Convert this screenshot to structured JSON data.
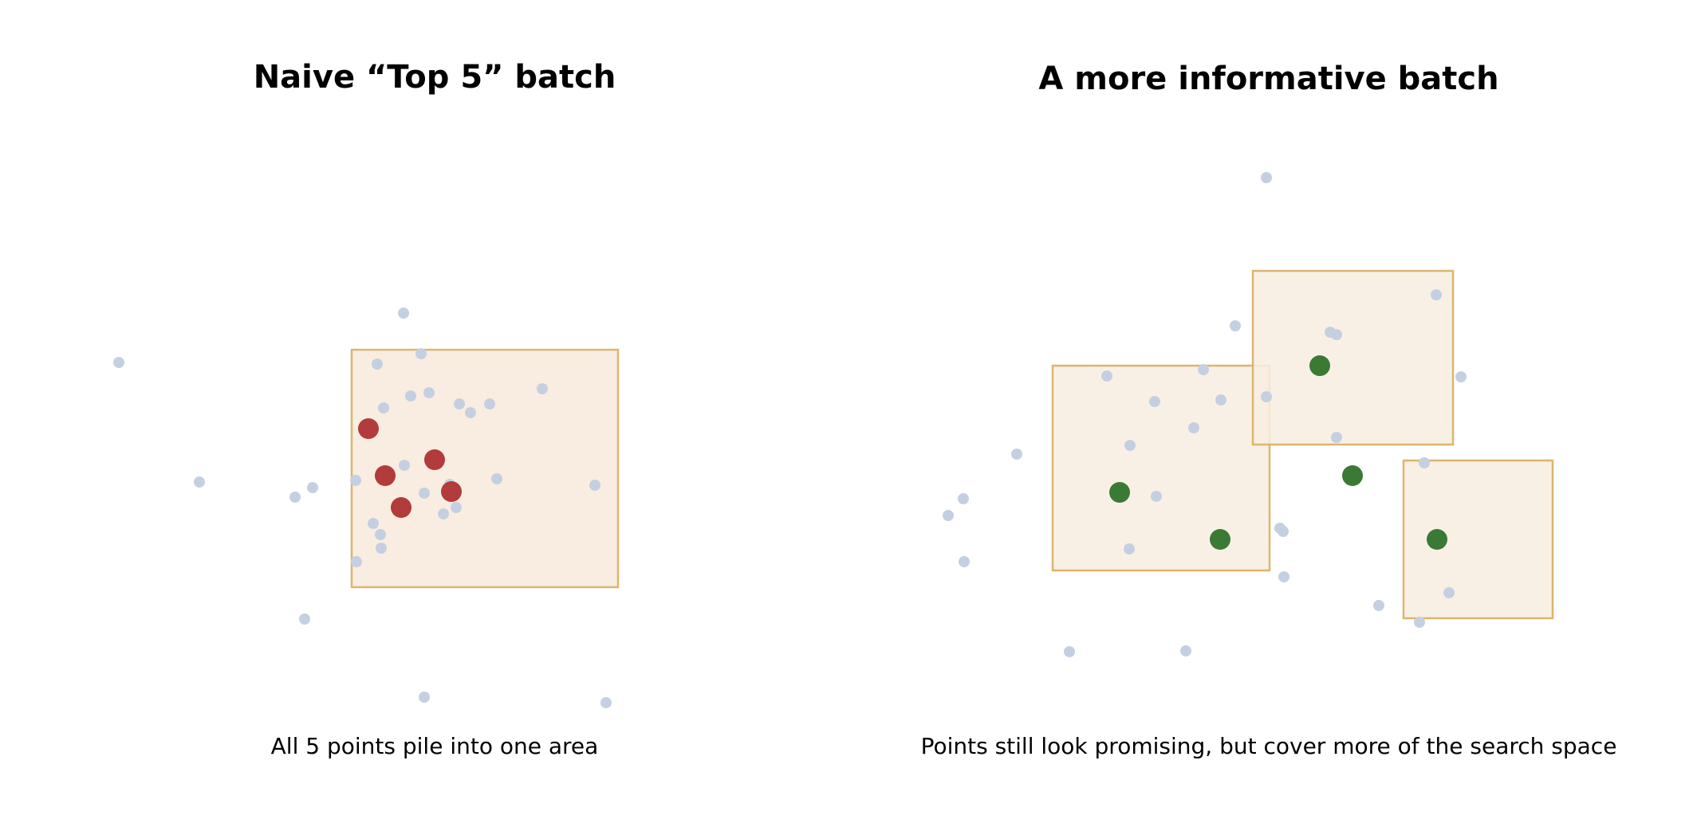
{
  "colors": {
    "background_point": "#c4d0e2",
    "naive_selected": "#b23b3b",
    "informative_selected": "#3a7a35",
    "region_fill": "#f8ede0",
    "region_stroke": "#dcb56e"
  },
  "left_panel": {
    "title": "Naive “Top 5” batch",
    "caption": "All 5 points pile into one area"
  },
  "right_panel": {
    "title": "A more informative batch",
    "caption": "Points still look promising, but cover more of the search space"
  }
}
